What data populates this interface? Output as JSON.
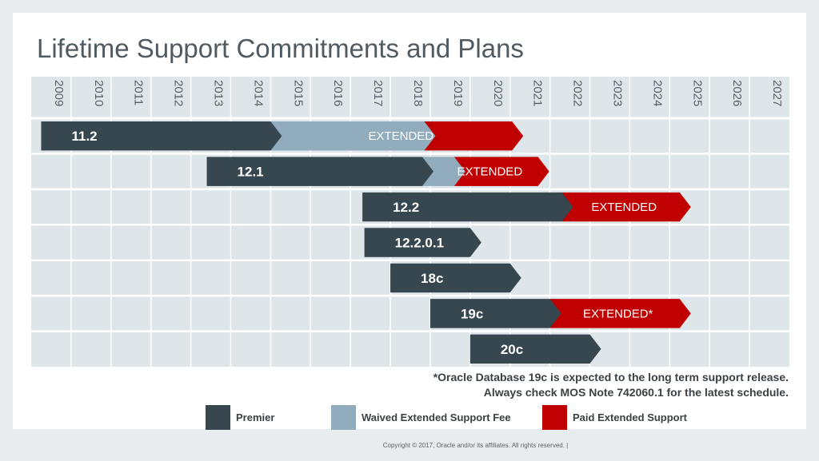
{
  "title": "Lifetime Support Commitments and Plans",
  "colors": {
    "premier": "#37474f",
    "waived": "#90acbd",
    "paid": "#c00000",
    "grid_bg": "#dfe6ea"
  },
  "chart_data": {
    "type": "gantt",
    "title": "Lifetime Support Commitments and Plans",
    "x": [
      "2009",
      "2010",
      "2011",
      "2012",
      "2013",
      "2014",
      "2015",
      "2016",
      "2017",
      "2018",
      "2019",
      "2020",
      "2021",
      "2022",
      "2023",
      "2024",
      "2025",
      "2026",
      "2027"
    ],
    "xlim": [
      2009,
      2028
    ],
    "releases": [
      {
        "label": "11.2",
        "premier": [
          2009.25,
          2015.0
        ],
        "waived": [
          2015.0,
          2018.85
        ],
        "paid": [
          2018.85,
          2021.05
        ],
        "extended_label": "EXTENDED"
      },
      {
        "label": "12.1",
        "premier": [
          2013.4,
          2018.8
        ],
        "waived": [
          2018.8,
          2019.6
        ],
        "paid": [
          2019.6,
          2021.7
        ],
        "extended_label": "EXTENDED"
      },
      {
        "label": "12.2",
        "premier": [
          2017.3,
          2022.3
        ],
        "paid": [
          2022.3,
          2025.25
        ],
        "extended_label": "EXTENDED"
      },
      {
        "label": "12.2.0.1",
        "premier": [
          2017.35,
          2020.0
        ]
      },
      {
        "label": "18c",
        "premier": [
          2018.0,
          2021.0
        ]
      },
      {
        "label": "19c",
        "premier": [
          2019.0,
          2022.0
        ],
        "paid": [
          2022.0,
          2025.25
        ],
        "extended_label": "EXTENDED*"
      },
      {
        "label": "20c",
        "premier": [
          2020.0,
          2023.0
        ]
      }
    ],
    "legend": [
      "Premier",
      "Waived Extended Support Fee",
      "Paid Extended Support"
    ]
  },
  "notes": {
    "line1": "*Oracle Database 19c is expected to the long term support release.",
    "line2": "Always check MOS Note 742060.1 for the latest schedule."
  },
  "legend": {
    "premier": "Premier",
    "waived": "Waived Extended Support Fee",
    "paid": "Paid Extended Support"
  },
  "footer": "Copyright © 2017, Oracle and/or its affiliates. All rights reserved.  |"
}
